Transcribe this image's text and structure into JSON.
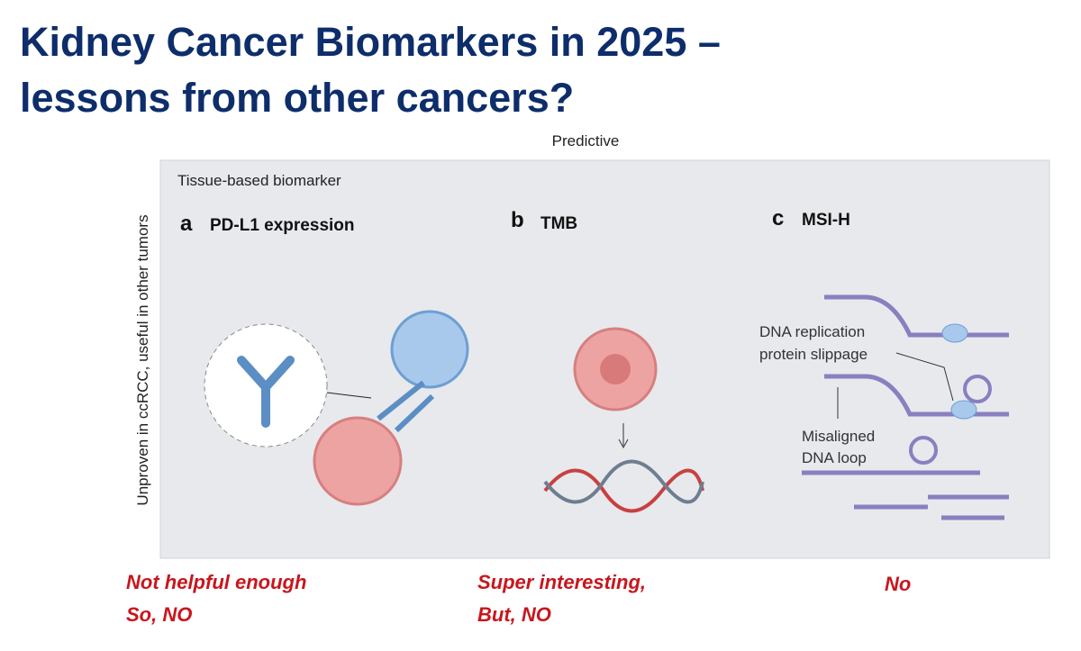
{
  "title": [
    "Kidney Cancer Biomarkers in 2025 –",
    "lessons from other cancers?"
  ],
  "figure": {
    "column_header": "Predictive",
    "row_label": "Unproven in ccRCC, useful in other tumors",
    "panel_heading": "Tissue-based biomarker",
    "panels": [
      {
        "letter": "a",
        "title": "PD-L1 expression"
      },
      {
        "letter": "b",
        "title": "TMB"
      },
      {
        "letter": "c",
        "title": "MSI-H",
        "annotations": [
          "DNA replication",
          "protein slippage",
          "Misaligned",
          "DNA loop"
        ]
      }
    ]
  },
  "verdicts": [
    [
      "Not helpful enough",
      "So, NO"
    ],
    [
      "Super interesting,",
      "But, NO"
    ],
    [
      "No"
    ]
  ]
}
